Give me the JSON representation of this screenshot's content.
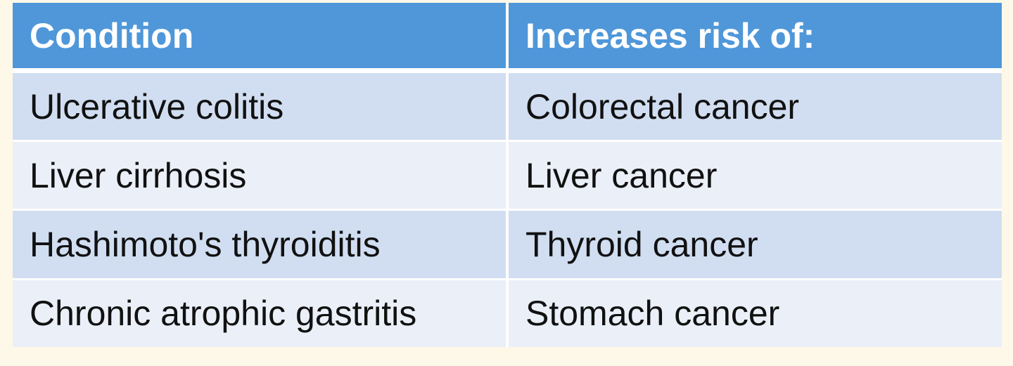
{
  "table": {
    "headers": [
      "Condition",
      "Increases risk of:"
    ],
    "rows": [
      [
        "Ulcerative colitis",
        "Colorectal cancer"
      ],
      [
        "Liver cirrhosis",
        "Liver cancer"
      ],
      [
        "Hashimoto's thyroiditis",
        "Thyroid cancer"
      ],
      [
        "Chronic atrophic gastritis",
        "Stomach cancer"
      ]
    ]
  },
  "colors": {
    "header_bg": "#4f97d9",
    "row_odd_bg": "#d1def1",
    "row_even_bg": "#eaeff8",
    "page_bg": "#fdf8e8"
  }
}
